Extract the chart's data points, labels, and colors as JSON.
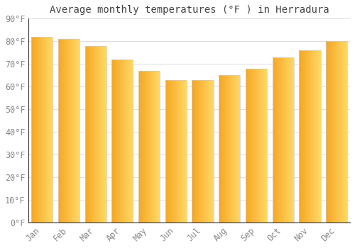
{
  "title": "Average monthly temperatures (°F ) in Herradura",
  "months": [
    "Jan",
    "Feb",
    "Mar",
    "Apr",
    "May",
    "Jun",
    "Jul",
    "Aug",
    "Sep",
    "Oct",
    "Nov",
    "Dec"
  ],
  "values": [
    82,
    81,
    78,
    72,
    67,
    63,
    63,
    65,
    68,
    73,
    76,
    80
  ],
  "bar_color_left": "#F5A623",
  "bar_color_right": "#FFD966",
  "background_color": "#FFFFFF",
  "grid_color": "#DDDDDD",
  "ylim": [
    0,
    90
  ],
  "ytick_step": 10,
  "title_fontsize": 10,
  "tick_fontsize": 8.5,
  "tick_color": "#888888"
}
